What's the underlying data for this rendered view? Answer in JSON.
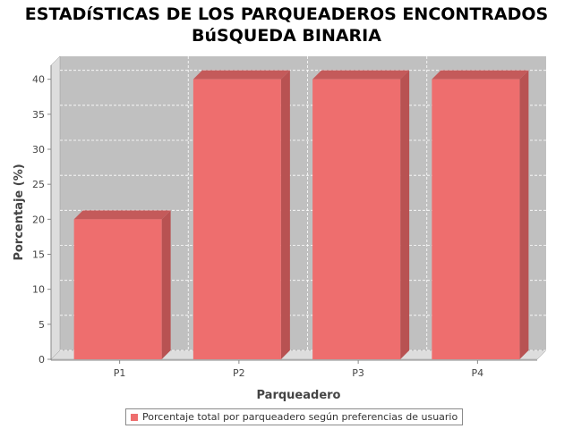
{
  "chart_data": {
    "type": "bar",
    "title": [
      "ESTADíSTICAS DE LOS PARQUEADEROS ENCONTRADOS",
      "BúSQUEDA BINARIA"
    ],
    "xlabel": "Parqueadero",
    "ylabel": "Porcentaje (%)",
    "categories": [
      "P1",
      "P2",
      "P3",
      "P4"
    ],
    "series": [
      {
        "name": "Porcentaje total por parqueadero según preferencias de usuario",
        "values": [
          20,
          40,
          40,
          40
        ]
      }
    ],
    "ylim": [
      0,
      42
    ],
    "yticks": [
      0,
      5,
      10,
      15,
      20,
      25,
      30,
      35,
      40
    ],
    "grid": true,
    "legend_position": "bottom",
    "style": "3d",
    "colors": {
      "bar_front": "#ee6e6e",
      "bar_side": "#b85252",
      "bar_top": "#c45a5a",
      "plot_background": "#c0c0c0",
      "wall": "#dddddd",
      "gridline": "#ffffff"
    }
  }
}
